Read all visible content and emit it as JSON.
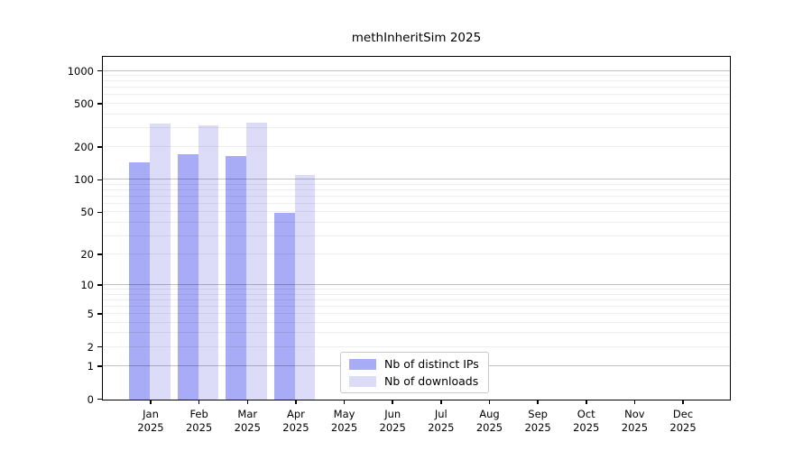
{
  "figure": {
    "background": "#ffffff",
    "spine_color": "#000000",
    "grid_major_color": "rgba(0,0,0,0.24)",
    "grid_minor_color": "rgba(0,0,0,0.065)",
    "text_color": "#000000"
  },
  "chart_data": {
    "type": "bar",
    "title": "methInheritSim 2025",
    "categories": [
      "Jan",
      "Feb",
      "Mar",
      "Apr",
      "May",
      "Jun",
      "Jul",
      "Aug",
      "Sep",
      "Oct",
      "Nov",
      "Dec"
    ],
    "year": "2025",
    "series": [
      {
        "name": "Nb of distinct IPs",
        "color": "#a8abf5",
        "values": [
          145,
          175,
          168,
          50,
          null,
          null,
          null,
          null,
          null,
          null,
          null,
          null
        ]
      },
      {
        "name": "Nb of downloads",
        "color": "#dcdcf9",
        "values": [
          330,
          320,
          340,
          112,
          null,
          null,
          null,
          null,
          null,
          null,
          null,
          null
        ]
      }
    ],
    "y_ticks": [
      1000,
      500,
      200,
      100,
      50,
      20,
      10,
      5,
      2,
      1,
      0
    ],
    "yscale": "log10(1+v)",
    "ylim": [
      0,
      1400
    ],
    "xlabel": "",
    "ylabel": "",
    "grid": "horizontal, log minor + major (at 1,10,100,1000)",
    "legend_position": "inside plot, lower center-right"
  }
}
